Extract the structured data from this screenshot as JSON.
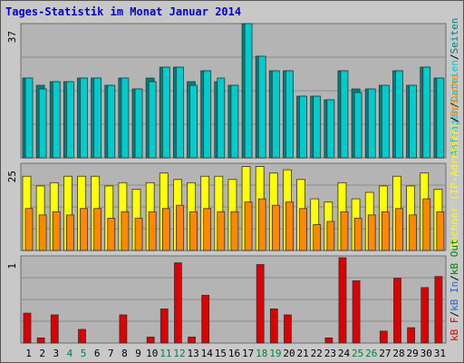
{
  "title": "Tages-Statistik im Monat Januar 2014",
  "colors": {
    "frame_bg": "#c8c8c8",
    "panel_bg": "#b4b4b4",
    "grid": "#8c8c8c",
    "anfragen": "#00c8c8",
    "dateien": "#00cccc",
    "seiten": "#008080",
    "rechner": "#ffff00",
    "besuche": "#ff8800",
    "kb": "#dd0000",
    "weekday_label": "#000000",
    "weekend_label": "#008040"
  },
  "chart_data": [
    {
      "type": "bar",
      "name": "hits-panel",
      "ylim": [
        0,
        37
      ],
      "y_tick_label": "37",
      "legend": [
        "Anfragen",
        "/",
        "Dateien",
        "/",
        "Seiten"
      ],
      "categories": [
        "1",
        "2",
        "3",
        "4",
        "5",
        "6",
        "7",
        "8",
        "9",
        "10",
        "11",
        "12",
        "13",
        "14",
        "15",
        "16",
        "17",
        "18",
        "19",
        "20",
        "21",
        "22",
        "23",
        "24",
        "25",
        "26",
        "27",
        "28",
        "29",
        "30",
        "31"
      ],
      "series": [
        {
          "name": "Seiten",
          "values": [
            22,
            20,
            21,
            21,
            22,
            22,
            20,
            22,
            19,
            22,
            25,
            25,
            21,
            24,
            21,
            20,
            37,
            28,
            24,
            24,
            17,
            17,
            16,
            24,
            19,
            19,
            20,
            24,
            20,
            25,
            22
          ]
        },
        {
          "name": "Dateien",
          "values": [
            22,
            19,
            21,
            21,
            22,
            22,
            20,
            22,
            19,
            21,
            25,
            25,
            20,
            24,
            22,
            20,
            37,
            28,
            24,
            24,
            17,
            17,
            16,
            24,
            18,
            19,
            20,
            24,
            20,
            25,
            22
          ]
        }
      ]
    },
    {
      "type": "bar",
      "name": "visits-panel",
      "ylim": [
        0,
        25
      ],
      "y_tick_label": "25",
      "legend": [
        "Rechner (IP-Adressen)",
        "/",
        "Besuche"
      ],
      "categories": [
        "1",
        "2",
        "3",
        "4",
        "5",
        "6",
        "7",
        "8",
        "9",
        "10",
        "11",
        "12",
        "13",
        "14",
        "15",
        "16",
        "17",
        "18",
        "19",
        "20",
        "21",
        "22",
        "23",
        "24",
        "25",
        "26",
        "27",
        "28",
        "29",
        "30",
        "31"
      ],
      "series": [
        {
          "name": "Rechner (IP-Adressen)",
          "values": [
            23,
            20,
            21,
            23,
            23,
            23,
            20,
            21,
            19,
            21,
            24,
            22,
            21,
            23,
            23,
            22,
            26,
            26,
            24,
            25,
            22,
            16,
            15,
            21,
            16,
            18,
            20,
            23,
            20,
            24,
            19
          ]
        },
        {
          "name": "Besuche",
          "values": [
            13,
            11,
            12,
            11,
            13,
            13,
            10,
            12,
            10,
            12,
            13,
            14,
            12,
            13,
            12,
            12,
            15,
            16,
            14,
            15,
            13,
            8,
            9,
            12,
            10,
            11,
            12,
            13,
            11,
            16,
            12
          ]
        }
      ]
    },
    {
      "type": "bar",
      "name": "kb-panel",
      "ylim": [
        0,
        1
      ],
      "y_tick_label": "1",
      "legend": [
        "kB F",
        "/",
        "kB In",
        "/",
        "kB Out"
      ],
      "categories": [
        "1",
        "2",
        "3",
        "4",
        "5",
        "6",
        "7",
        "8",
        "9",
        "10",
        "11",
        "12",
        "13",
        "14",
        "15",
        "16",
        "17",
        "18",
        "19",
        "20",
        "21",
        "22",
        "23",
        "24",
        "25",
        "26",
        "27",
        "28",
        "29",
        "30",
        "31"
      ],
      "series": [
        {
          "name": "kB F",
          "values": [
            0.35,
            0.06,
            0.33,
            0,
            0.16,
            0,
            0,
            0.33,
            0,
            0.07,
            0.4,
            0.94,
            0.07,
            0.56,
            0,
            0,
            0,
            0.92,
            0.4,
            0.33,
            0,
            0,
            0.06,
            1.0,
            0.73,
            0,
            0.14,
            0.76,
            0.18,
            0.65,
            0.78
          ]
        }
      ]
    }
  ],
  "weekend_days": [
    "4",
    "5",
    "11",
    "12",
    "18",
    "19",
    "25",
    "26"
  ]
}
